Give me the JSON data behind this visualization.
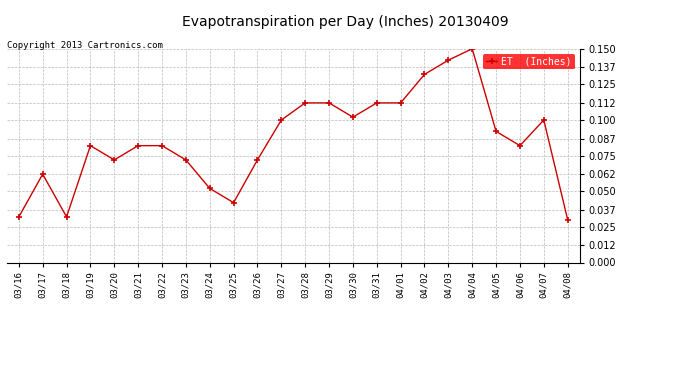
{
  "title": "Evapotranspiration per Day (Inches) 20130409",
  "copyright_text": "Copyright 2013 Cartronics.com",
  "legend_label": "ET  (Inches)",
  "legend_bg": "#ff0000",
  "legend_text_color": "#ffffff",
  "line_color": "#cc0000",
  "marker": "+",
  "marker_color": "#cc0000",
  "background_color": "#ffffff",
  "grid_color": "#bbbbbb",
  "xlabels": [
    "03/16",
    "03/17",
    "03/18",
    "03/19",
    "03/20",
    "03/21",
    "03/22",
    "03/23",
    "03/24",
    "03/25",
    "03/26",
    "03/27",
    "03/28",
    "03/29",
    "03/30",
    "03/31",
    "04/01",
    "04/02",
    "04/03",
    "04/04",
    "04/05",
    "04/06",
    "04/07",
    "04/08"
  ],
  "values": [
    0.032,
    0.062,
    0.032,
    0.082,
    0.072,
    0.082,
    0.082,
    0.072,
    0.052,
    0.042,
    0.072,
    0.1,
    0.112,
    0.112,
    0.102,
    0.112,
    0.112,
    0.132,
    0.142,
    0.15,
    0.092,
    0.082,
    0.1,
    0.03
  ],
  "ylim": [
    0.0,
    0.15
  ],
  "yticks": [
    0.0,
    0.012,
    0.025,
    0.037,
    0.05,
    0.062,
    0.075,
    0.087,
    0.1,
    0.112,
    0.125,
    0.137,
    0.15
  ]
}
